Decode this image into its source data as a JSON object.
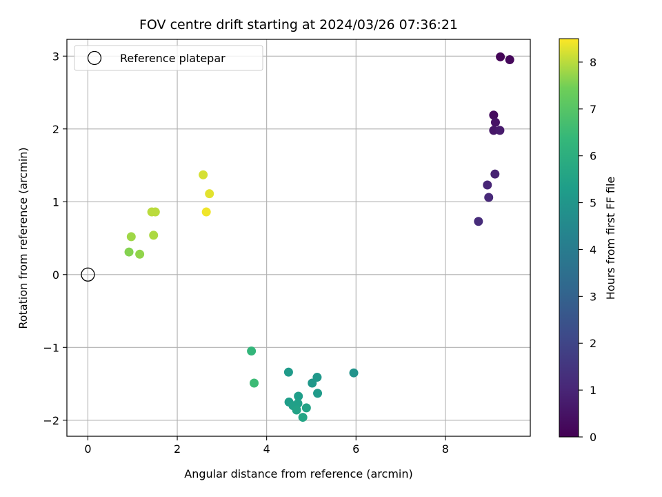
{
  "chart_data": {
    "type": "scatter",
    "title": "FOV centre drift starting at 2024/03/26 07:36:21",
    "xlabel": "Angular distance from reference (arcmin)",
    "ylabel": "Rotation from reference (arcmin)",
    "xlim": [
      -0.47,
      9.9
    ],
    "ylim": [
      -2.22,
      3.23
    ],
    "x_ticks": [
      0,
      2,
      4,
      6,
      8
    ],
    "y_ticks": [
      -2,
      -1,
      0,
      1,
      2,
      3
    ],
    "x_tick_labels": [
      "0",
      "2",
      "4",
      "6",
      "8"
    ],
    "y_tick_labels": [
      "−2",
      "−1",
      "0",
      "1",
      "2",
      "3"
    ],
    "grid": true,
    "legend": {
      "position": "top-left",
      "label": "Reference platepar"
    },
    "reference_point": {
      "x": 0,
      "y": 0
    },
    "colorbar": {
      "label": "Hours from first FF file",
      "min": 0,
      "max": 8.5,
      "ticks": [
        0,
        1,
        2,
        3,
        4,
        5,
        6,
        7,
        8
      ],
      "tick_labels": [
        "0",
        "1",
        "2",
        "3",
        "4",
        "5",
        "6",
        "7",
        "8"
      ],
      "colormap": "viridis"
    },
    "points": [
      {
        "x": 9.23,
        "y": 2.99,
        "c": 0.1
      },
      {
        "x": 9.44,
        "y": 2.95,
        "c": 0.2
      },
      {
        "x": 9.08,
        "y": 2.19,
        "c": 0.3
      },
      {
        "x": 9.12,
        "y": 2.09,
        "c": 0.5
      },
      {
        "x": 9.08,
        "y": 1.98,
        "c": 0.6
      },
      {
        "x": 9.22,
        "y": 1.98,
        "c": 0.7
      },
      {
        "x": 9.11,
        "y": 1.38,
        "c": 0.9
      },
      {
        "x": 8.94,
        "y": 1.23,
        "c": 1.0
      },
      {
        "x": 8.97,
        "y": 1.06,
        "c": 1.1
      },
      {
        "x": 8.74,
        "y": 0.73,
        "c": 1.2
      },
      {
        "x": 5.95,
        "y": -1.35,
        "c": 4.9
      },
      {
        "x": 5.13,
        "y": -1.41,
        "c": 5.1
      },
      {
        "x": 5.02,
        "y": -1.49,
        "c": 5.1
      },
      {
        "x": 5.14,
        "y": -1.63,
        "c": 5.2
      },
      {
        "x": 4.49,
        "y": -1.34,
        "c": 5.2
      },
      {
        "x": 4.71,
        "y": -1.67,
        "c": 5.3
      },
      {
        "x": 4.5,
        "y": -1.75,
        "c": 5.3
      },
      {
        "x": 4.7,
        "y": -1.77,
        "c": 5.4
      },
      {
        "x": 4.59,
        "y": -1.8,
        "c": 5.4
      },
      {
        "x": 4.67,
        "y": -1.86,
        "c": 5.5
      },
      {
        "x": 4.89,
        "y": -1.83,
        "c": 5.5
      },
      {
        "x": 4.81,
        "y": -1.96,
        "c": 5.6
      },
      {
        "x": 3.66,
        "y": -1.05,
        "c": 6.3
      },
      {
        "x": 3.72,
        "y": -1.49,
        "c": 6.5
      },
      {
        "x": 0.92,
        "y": 0.31,
        "c": 7.6
      },
      {
        "x": 1.16,
        "y": 0.28,
        "c": 7.7
      },
      {
        "x": 0.97,
        "y": 0.52,
        "c": 7.8
      },
      {
        "x": 1.47,
        "y": 0.54,
        "c": 7.9
      },
      {
        "x": 1.43,
        "y": 0.86,
        "c": 8.0
      },
      {
        "x": 1.51,
        "y": 0.86,
        "c": 8.0
      },
      {
        "x": 2.58,
        "y": 1.37,
        "c": 8.2
      },
      {
        "x": 2.72,
        "y": 1.11,
        "c": 8.3
      },
      {
        "x": 2.65,
        "y": 0.86,
        "c": 8.4
      }
    ]
  }
}
